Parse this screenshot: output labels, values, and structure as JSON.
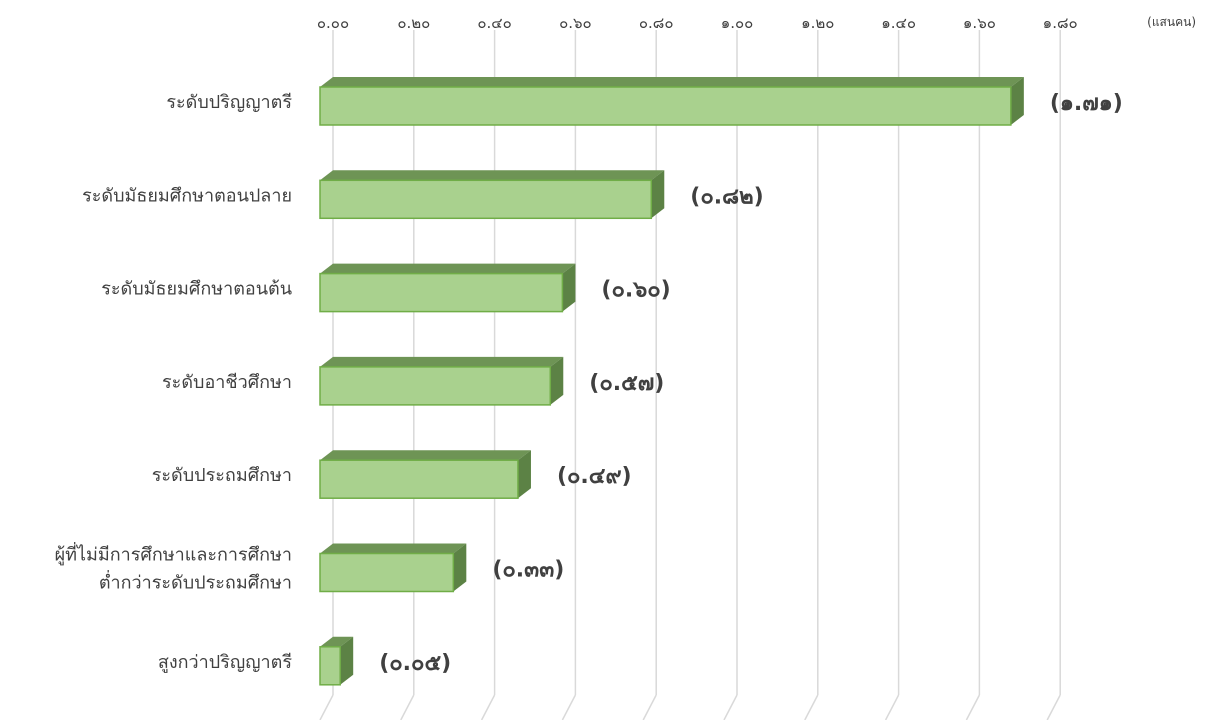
{
  "chart_data": {
    "type": "bar",
    "orientation": "horizontal",
    "style": "3d",
    "unit": "(แสนคน)",
    "categories": [
      "ระดับปริญญาตรี",
      "ระดับมัธยมศึกษาตอนปลาย",
      "ระดับมัธยมศึกษาตอนต้น",
      "ระดับอาชีวศึกษา",
      "ระดับประถมศึกษา",
      [
        "ผู้ที่ไม่มีการศึกษาและการศึกษา",
        "ต่ำกว่าระดับประถมศึกษา"
      ],
      "สูงกว่าปริญญาตรี"
    ],
    "values": [
      1.71,
      0.82,
      0.6,
      0.57,
      0.49,
      0.33,
      0.05
    ],
    "data_labels": [
      "(๑.๗๑)",
      "(๐.๘๒)",
      "(๐.๖๐)",
      "(๐.๕๗)",
      "(๐.๔๙)",
      "(๐.๓๓)",
      "(๐.๐๕)"
    ],
    "x_ticks": [
      0.0,
      0.2,
      0.4,
      0.6,
      0.8,
      1.0,
      1.2,
      1.4,
      1.6,
      1.8
    ],
    "x_tick_labels": [
      "๐.๐๐",
      "๐.๒๐",
      "๐.๔๐",
      "๐.๖๐",
      "๐.๘๐",
      "๑.๐๐",
      "๑.๒๐",
      "๑.๔๐",
      "๑.๖๐",
      "๑.๘๐"
    ],
    "xlim": [
      0,
      1.8
    ],
    "xaxis_position": "top",
    "grid": true,
    "legend": "none",
    "colors": {
      "bar_front": "#a9d18e",
      "bar_top": "#6e9455",
      "bar_side": "#5c8245",
      "bar_outline": "#70ad47",
      "grid": "#d9d9d9",
      "text": "#404040"
    }
  }
}
